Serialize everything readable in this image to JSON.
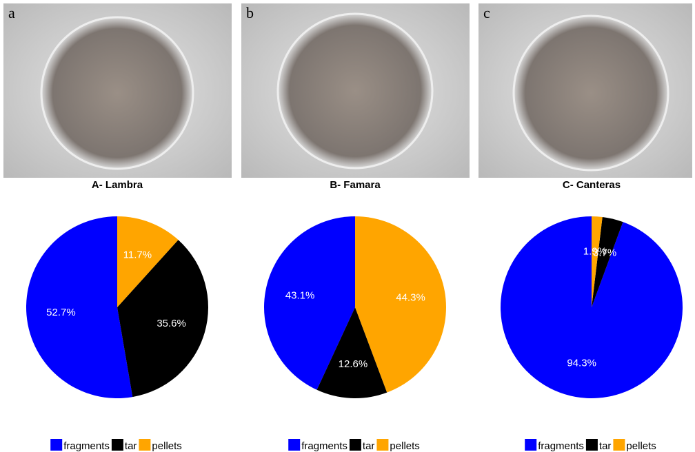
{
  "chart_data": [
    {
      "type": "pie",
      "panel_label": "a",
      "title": "A- Lambra",
      "categories": [
        "fragments",
        "tar",
        "pellets"
      ],
      "colors": [
        "#0000ff",
        "#000000",
        "#ffa500"
      ],
      "values": [
        52.7,
        35.6,
        11.7
      ],
      "value_labels": [
        "52.7%",
        "35.6%",
        "11.7%"
      ]
    },
    {
      "type": "pie",
      "panel_label": "b",
      "title": "B- Famara",
      "categories": [
        "fragments",
        "tar",
        "pellets"
      ],
      "colors": [
        "#0000ff",
        "#000000",
        "#ffa500"
      ],
      "values": [
        43.1,
        12.6,
        44.3
      ],
      "value_labels": [
        "43.1%",
        "12.6%",
        "44.3%"
      ]
    },
    {
      "type": "pie",
      "panel_label": "c",
      "title": "C- Canteras",
      "categories": [
        "fragments",
        "tar",
        "pellets"
      ],
      "colors": [
        "#0000ff",
        "#000000",
        "#ffa500"
      ],
      "values": [
        94.3,
        3.7,
        1.9
      ],
      "value_labels": [
        "94.3%",
        "3.7%",
        "1.9%"
      ]
    }
  ]
}
